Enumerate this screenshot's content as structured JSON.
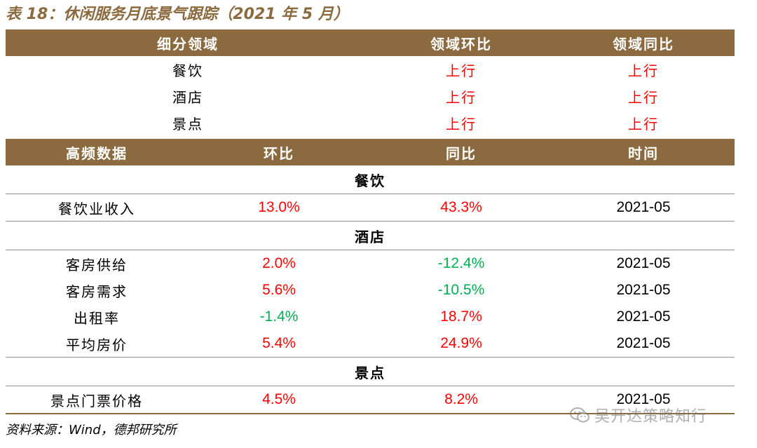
{
  "title": "表 18：休闲服务月底景气跟踪（2021 年 5 月）",
  "summary": {
    "headers": [
      "细分领域",
      "领域环比",
      "领域同比"
    ],
    "rows": [
      {
        "segment": "餐饮",
        "mom": "上行",
        "yoy": "上行"
      },
      {
        "segment": "酒店",
        "mom": "上行",
        "yoy": "上行"
      },
      {
        "segment": "景点",
        "mom": "上行",
        "yoy": "上行"
      }
    ]
  },
  "detail": {
    "headers": [
      "高频数据",
      "环比",
      "同比",
      "时间"
    ],
    "sections": [
      {
        "name": "餐饮",
        "rows": [
          {
            "label": "餐饮业收入",
            "mom": "13.0%",
            "yoy": "43.3%",
            "date": "2021-05"
          }
        ]
      },
      {
        "name": "酒店",
        "rows": [
          {
            "label": "客房供给",
            "mom": "2.0%",
            "yoy": "-12.4%",
            "date": "2021-05"
          },
          {
            "label": "客房需求",
            "mom": "5.6%",
            "yoy": "-10.5%",
            "date": "2021-05"
          },
          {
            "label": "出租率",
            "mom": "-1.4%",
            "yoy": "18.7%",
            "date": "2021-05"
          },
          {
            "label": "平均房价",
            "mom": "5.4%",
            "yoy": "24.9%",
            "date": "2021-05"
          }
        ]
      },
      {
        "name": "景点",
        "rows": [
          {
            "label": "景点门票价格",
            "mom": "4.5%",
            "yoy": "8.2%",
            "date": "2021-05"
          }
        ]
      }
    ]
  },
  "source": "资料来源：Wind，德邦研究所",
  "watermark": {
    "text": "吴开达策略知行",
    "icon": "wechat-icon"
  },
  "colors": {
    "header_bg": "#8a6a3e",
    "positive": "#ff0000",
    "negative": "#00b050"
  }
}
